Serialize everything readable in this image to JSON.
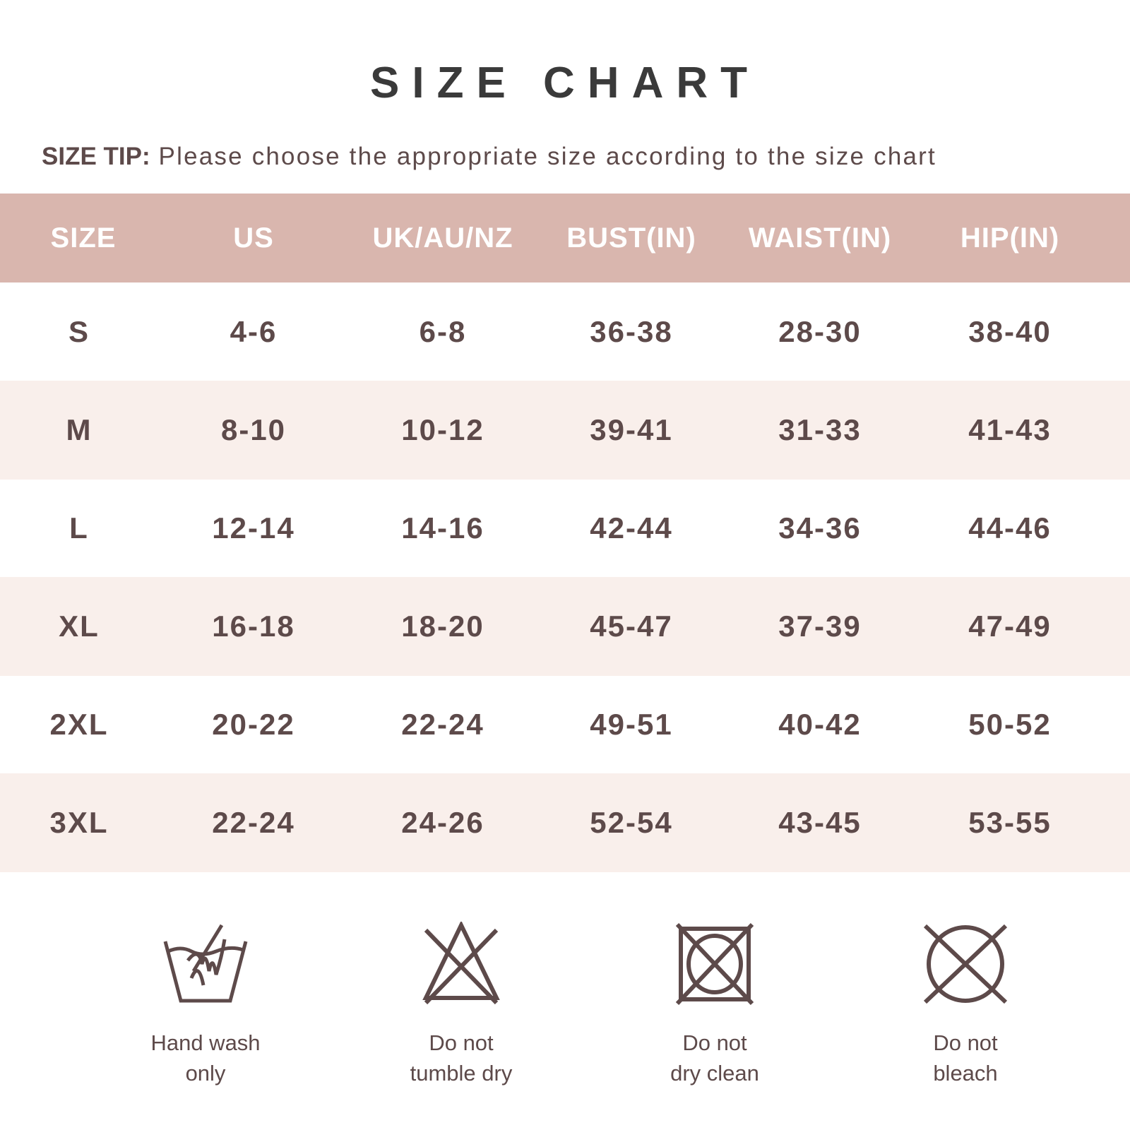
{
  "title": "SIZE CHART",
  "tip": {
    "label": "SIZE TIP:",
    "text": " Please choose the appropriate size according to the size chart"
  },
  "colors": {
    "header_bg": "#d9b6ae",
    "stripe_bg": "#f9efeb",
    "text": "#5d4a4a",
    "title": "#3a3a3a"
  },
  "table": {
    "headers": [
      "SIZE",
      "US",
      "UK/AU/NZ",
      "BUST(IN)",
      "WAIST(IN)",
      "HIP(IN)"
    ],
    "rows": [
      [
        "S",
        "4-6",
        "6-8",
        "36-38",
        "28-30",
        "38-40"
      ],
      [
        "M",
        "8-10",
        "10-12",
        "39-41",
        "31-33",
        "41-43"
      ],
      [
        "L",
        "12-14",
        "14-16",
        "42-44",
        "34-36",
        "44-46"
      ],
      [
        "XL",
        "16-18",
        "18-20",
        "45-47",
        "37-39",
        "47-49"
      ],
      [
        "2XL",
        "20-22",
        "22-24",
        "49-51",
        "40-42",
        "50-52"
      ],
      [
        "3XL",
        "22-24",
        "24-26",
        "52-54",
        "43-45",
        "53-55"
      ]
    ]
  },
  "care": [
    {
      "icon": "hand-wash-icon",
      "line1": "Hand wash",
      "line2": "only"
    },
    {
      "icon": "do-not-tumble-dry-icon",
      "line1": "Do not",
      "line2": "tumble dry"
    },
    {
      "icon": "do-not-dry-clean-icon",
      "line1": "Do not",
      "line2": "dry clean"
    },
    {
      "icon": "do-not-bleach-icon",
      "line1": "Do not",
      "line2": "bleach"
    }
  ]
}
